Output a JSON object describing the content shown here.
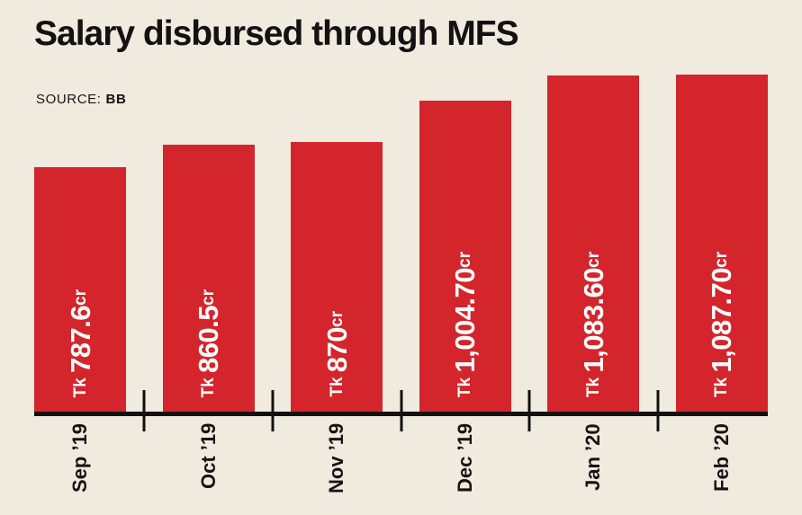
{
  "title": "Salary disbursed through MFS",
  "source": {
    "label": "SOURCE:",
    "value": "BB"
  },
  "colors": {
    "background": "#f0eadf",
    "bar": "#d3252b",
    "bar_label": "#ffffff",
    "axis": "#111111",
    "text": "#141414"
  },
  "chart_data": {
    "type": "bar",
    "title": "Salary disbursed through MFS",
    "source": "BB",
    "categories": [
      "Sep ’19",
      "Oct ’19",
      "Nov ’19",
      "Dec ’19",
      "Jan ’20",
      "Feb ’20"
    ],
    "values": [
      787.6,
      860.5,
      870,
      1004.7,
      1083.6,
      1087.7
    ],
    "bar_labels": [
      {
        "prefix": "Tk ",
        "amount": "787.6",
        "suffix": "cr"
      },
      {
        "prefix": "Tk ",
        "amount": "860.5",
        "suffix": "cr"
      },
      {
        "prefix": "Tk ",
        "amount": "870",
        "suffix": "cr"
      },
      {
        "prefix": "Tk ",
        "amount": "1,004.70",
        "suffix": "cr"
      },
      {
        "prefix": "Tk ",
        "amount": "1,083.60",
        "suffix": "cr"
      },
      {
        "prefix": "Tk ",
        "amount": "1,087.70",
        "suffix": "cr"
      }
    ],
    "xlabel": "",
    "ylabel": "",
    "ylim": [
      0,
      1087.7
    ],
    "grid": false,
    "legend": false,
    "bar_label_orientation": "vertical-bottom-to-top",
    "tick_label_orientation": "vertical-bottom-to-top"
  }
}
